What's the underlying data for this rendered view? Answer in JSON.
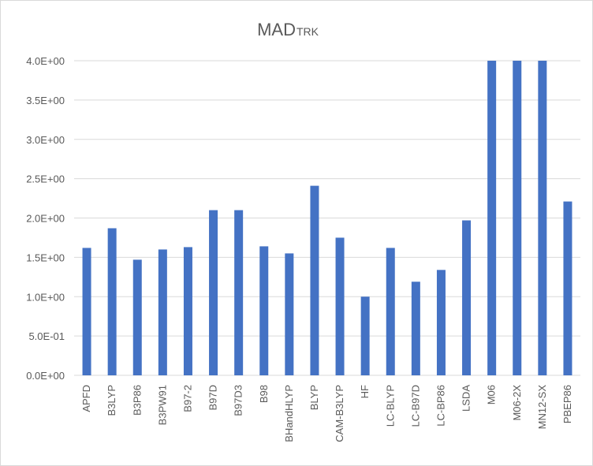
{
  "chart_data": {
    "type": "bar",
    "title": "MAD",
    "title_subscript": "TRK",
    "xlabel": "",
    "ylabel": "",
    "ylim": [
      0,
      4.0
    ],
    "y_ticks": [
      "0.0E+00",
      "5.0E-01",
      "1.0E+00",
      "1.5E+00",
      "2.0E+00",
      "2.5E+00",
      "3.0E+00",
      "3.5E+00",
      "4.0E+00"
    ],
    "y_tick_values": [
      0,
      0.5,
      1.0,
      1.5,
      2.0,
      2.5,
      3.0,
      3.5,
      4.0
    ],
    "grid": true,
    "legend": "none",
    "bar_color": "#4472c4",
    "categories": [
      "APFD",
      "B3LYP",
      "B3P86",
      "B3PW91",
      "B97-2",
      "B97D",
      "B97D3",
      "B98",
      "BHandHLYP",
      "BLYP",
      "CAM-B3LYP",
      "HF",
      "LC-BLYP",
      "LC-B97D",
      "LC-BP86",
      "LSDA",
      "M06",
      "M06-2X",
      "MN12-SX",
      "PBEP86"
    ],
    "values": [
      1.62,
      1.87,
      1.47,
      1.6,
      1.63,
      2.1,
      2.1,
      1.64,
      1.55,
      2.41,
      1.75,
      1.0,
      1.62,
      1.19,
      1.34,
      1.97,
      4.0,
      4.0,
      4.0,
      2.21
    ]
  }
}
